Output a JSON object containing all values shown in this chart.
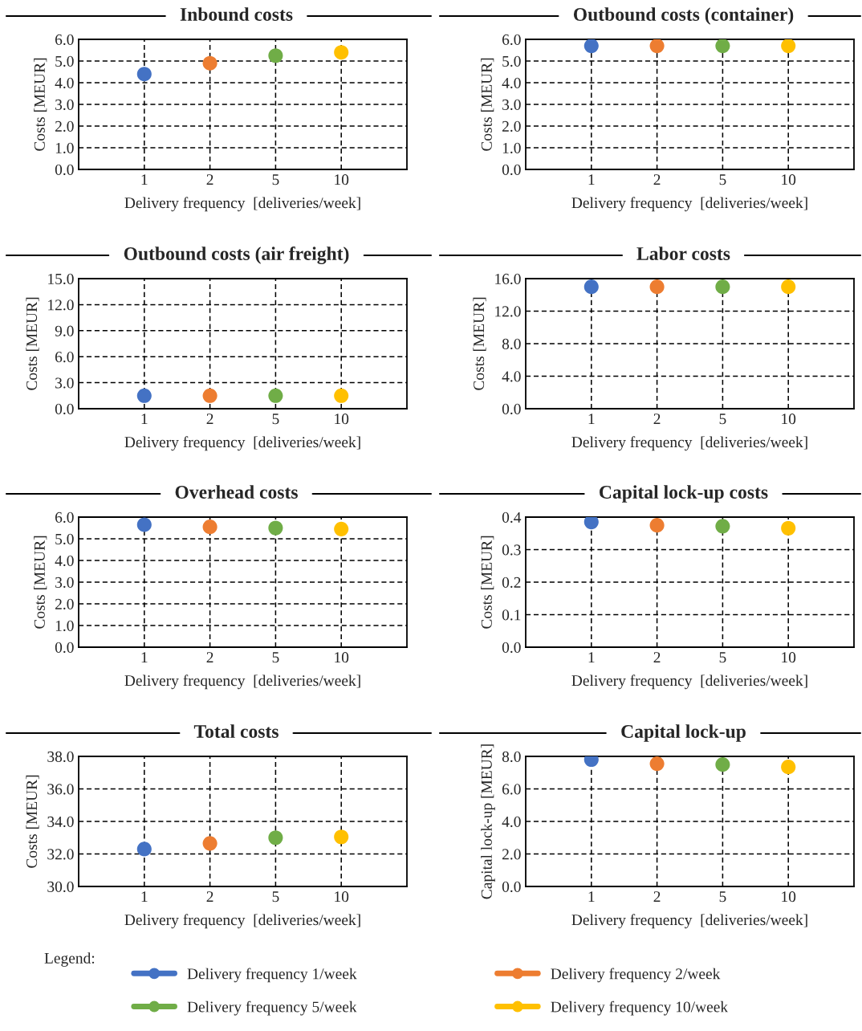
{
  "chart_data": [
    {
      "type": "scatter",
      "title": "Inbound costs",
      "xlabel": "Delivery frequency  [deliveries/week]",
      "ylabel": "Costs [MEUR]",
      "categories": [
        "1",
        "2",
        "5",
        "10"
      ],
      "ylim": [
        0,
        6
      ],
      "yticks": [
        {
          "value": 0,
          "label": "0.0"
        },
        {
          "value": 1,
          "label": "1.0"
        },
        {
          "value": 2,
          "label": "2.0"
        },
        {
          "value": 3,
          "label": "3.0"
        },
        {
          "value": 4,
          "label": "4.0"
        },
        {
          "value": 5,
          "label": "5.0"
        },
        {
          "value": 6,
          "label": "6.0"
        }
      ],
      "grid": true,
      "marker": "circle",
      "legend": "bottom",
      "annotations": [
        "Legend:"
      ],
      "series": [
        {
          "name": "Delivery frequency 1/week",
          "color": "#4472c4",
          "x": [
            "1"
          ],
          "values": [
            4.4
          ]
        },
        {
          "name": "Delivery frequency 2/week",
          "color": "#ed7d31",
          "x": [
            "2"
          ],
          "values": [
            4.9
          ]
        },
        {
          "name": "Delivery frequency 5/week",
          "color": "#70ad47",
          "x": [
            "5"
          ],
          "values": [
            5.25
          ]
        },
        {
          "name": "Delivery frequency 10/week",
          "color": "#ffc000",
          "x": [
            "10"
          ],
          "values": [
            5.4
          ]
        }
      ]
    },
    {
      "type": "scatter",
      "title": "Outbound costs (container)",
      "xlabel": "Delivery frequency  [deliveries/week]",
      "ylabel": "Costs [MEUR]",
      "categories": [
        "1",
        "2",
        "5",
        "10"
      ],
      "ylim": [
        0,
        6
      ],
      "yticks": [
        {
          "value": 0,
          "label": "0.0"
        },
        {
          "value": 1,
          "label": "1.0"
        },
        {
          "value": 2,
          "label": "2.0"
        },
        {
          "value": 3,
          "label": "3.0"
        },
        {
          "value": 4,
          "label": "4.0"
        },
        {
          "value": 5,
          "label": "5.0"
        },
        {
          "value": 6,
          "label": "6.0"
        }
      ],
      "grid": true,
      "marker": "circle",
      "series": [
        {
          "color": "#4472c4",
          "x": [
            "1"
          ],
          "values": [
            5.7
          ]
        },
        {
          "color": "#ed7d31",
          "x": [
            "2"
          ],
          "values": [
            5.7
          ]
        },
        {
          "color": "#70ad47",
          "x": [
            "5"
          ],
          "values": [
            5.7
          ]
        },
        {
          "color": "#ffc000",
          "x": [
            "10"
          ],
          "values": [
            5.7
          ]
        }
      ]
    },
    {
      "type": "scatter",
      "title": "Outbound costs (air freight)",
      "xlabel": "Delivery frequency  [deliveries/week]",
      "ylabel": "Costs [MEUR]",
      "categories": [
        "1",
        "2",
        "5",
        "10"
      ],
      "ylim": [
        0,
        15
      ],
      "yticks": [
        {
          "value": 0,
          "label": "0.0"
        },
        {
          "value": 3,
          "label": "3.0"
        },
        {
          "value": 6,
          "label": "6.0"
        },
        {
          "value": 9,
          "label": "9.0"
        },
        {
          "value": 12,
          "label": "12.0"
        },
        {
          "value": 15,
          "label": "15.0"
        }
      ],
      "grid": true,
      "marker": "circle",
      "series": [
        {
          "color": "#4472c4",
          "x": [
            "1"
          ],
          "values": [
            1.5
          ]
        },
        {
          "color": "#ed7d31",
          "x": [
            "2"
          ],
          "values": [
            1.5
          ]
        },
        {
          "color": "#70ad47",
          "x": [
            "5"
          ],
          "values": [
            1.5
          ]
        },
        {
          "color": "#ffc000",
          "x": [
            "10"
          ],
          "values": [
            1.5
          ]
        }
      ]
    },
    {
      "type": "scatter",
      "title": "Labor costs",
      "xlabel": "Delivery frequency  [deliveries/week]",
      "ylabel": "Costs [MEUR]",
      "categories": [
        "1",
        "2",
        "5",
        "10"
      ],
      "ylim": [
        0,
        16
      ],
      "yticks": [
        {
          "value": 0,
          "label": "0.0"
        },
        {
          "value": 4,
          "label": "4.0"
        },
        {
          "value": 8,
          "label": "8.0"
        },
        {
          "value": 12,
          "label": "12.0"
        },
        {
          "value": 16,
          "label": "16.0"
        }
      ],
      "grid": true,
      "marker": "circle",
      "series": [
        {
          "color": "#4472c4",
          "x": [
            "1"
          ],
          "values": [
            15.0
          ]
        },
        {
          "color": "#ed7d31",
          "x": [
            "2"
          ],
          "values": [
            15.0
          ]
        },
        {
          "color": "#70ad47",
          "x": [
            "5"
          ],
          "values": [
            15.0
          ]
        },
        {
          "color": "#ffc000",
          "x": [
            "10"
          ],
          "values": [
            15.0
          ]
        }
      ]
    },
    {
      "type": "scatter",
      "title": "Overhead costs",
      "xlabel": "Delivery frequency  [deliveries/week]",
      "ylabel": "Costs [MEUR]",
      "categories": [
        "1",
        "2",
        "5",
        "10"
      ],
      "ylim": [
        0,
        6
      ],
      "yticks": [
        {
          "value": 0,
          "label": "0.0"
        },
        {
          "value": 1,
          "label": "1.0"
        },
        {
          "value": 2,
          "label": "2.0"
        },
        {
          "value": 3,
          "label": "3.0"
        },
        {
          "value": 4,
          "label": "4.0"
        },
        {
          "value": 5,
          "label": "5.0"
        },
        {
          "value": 6,
          "label": "6.0"
        }
      ],
      "grid": true,
      "marker": "circle",
      "series": [
        {
          "color": "#4472c4",
          "x": [
            "1"
          ],
          "values": [
            5.65
          ]
        },
        {
          "color": "#ed7d31",
          "x": [
            "2"
          ],
          "values": [
            5.55
          ]
        },
        {
          "color": "#70ad47",
          "x": [
            "5"
          ],
          "values": [
            5.5
          ]
        },
        {
          "color": "#ffc000",
          "x": [
            "10"
          ],
          "values": [
            5.45
          ]
        }
      ]
    },
    {
      "type": "scatter",
      "title": "Capital lock-up costs",
      "xlabel": "Delivery frequency  [deliveries/week]",
      "ylabel": "Costs [MEUR]",
      "categories": [
        "1",
        "2",
        "5",
        "10"
      ],
      "ylim": [
        0,
        0.4
      ],
      "yticks": [
        {
          "value": 0,
          "label": "0.0"
        },
        0.1,
        0.2,
        0.3,
        0.4
      ],
      "grid": true,
      "marker": "circle",
      "series": [
        {
          "color": "#4472c4",
          "x": [
            "1"
          ],
          "values": [
            0.385
          ]
        },
        {
          "color": "#ed7d31",
          "x": [
            "2"
          ],
          "values": [
            0.375
          ]
        },
        {
          "color": "#70ad47",
          "x": [
            "5"
          ],
          "values": [
            0.372
          ]
        },
        {
          "color": "#ffc000",
          "x": [
            "10"
          ],
          "values": [
            0.366
          ]
        }
      ]
    },
    {
      "type": "scatter",
      "title": "Total costs",
      "xlabel": "Delivery frequency  [deliveries/week]",
      "ylabel": "Costs [MEUR]",
      "categories": [
        "1",
        "2",
        "5",
        "10"
      ],
      "ylim": [
        30,
        38
      ],
      "yticks": [
        {
          "value": 30,
          "label": "30.0"
        },
        {
          "value": 32,
          "label": "32.0"
        },
        {
          "value": 34,
          "label": "34.0"
        },
        {
          "value": 36,
          "label": "36.0"
        },
        {
          "value": 38,
          "label": "38.0"
        }
      ],
      "grid": true,
      "marker": "circle",
      "series": [
        {
          "color": "#4472c4",
          "x": [
            "1"
          ],
          "values": [
            32.3
          ]
        },
        {
          "color": "#ed7d31",
          "x": [
            "2"
          ],
          "values": [
            32.65
          ]
        },
        {
          "color": "#70ad47",
          "x": [
            "5"
          ],
          "values": [
            33.0
          ]
        },
        {
          "color": "#ffc000",
          "x": [
            "10"
          ],
          "values": [
            33.05
          ]
        }
      ]
    },
    {
      "type": "scatter",
      "title": "Capital lock-up",
      "xlabel": "Delivery frequency  [deliveries/week]",
      "ylabel": "Capital lock-up [MEUR]",
      "categories": [
        "1",
        "2",
        "5",
        "10"
      ],
      "ylim": [
        0,
        8
      ],
      "yticks": [
        {
          "value": 0,
          "label": "0.0"
        },
        {
          "value": 2,
          "label": "2.0"
        },
        {
          "value": 4,
          "label": "4.0"
        },
        {
          "value": 6,
          "label": "6.0"
        },
        {
          "value": 8,
          "label": "8.0"
        }
      ],
      "grid": true,
      "marker": "circle",
      "series": [
        {
          "color": "#4472c4",
          "x": [
            "1"
          ],
          "values": [
            7.8
          ]
        },
        {
          "color": "#ed7d31",
          "x": [
            "2"
          ],
          "values": [
            7.55
          ]
        },
        {
          "color": "#70ad47",
          "x": [
            "5"
          ],
          "values": [
            7.5
          ]
        },
        {
          "color": "#ffc000",
          "x": [
            "10"
          ],
          "values": [
            7.35
          ]
        }
      ]
    }
  ]
}
